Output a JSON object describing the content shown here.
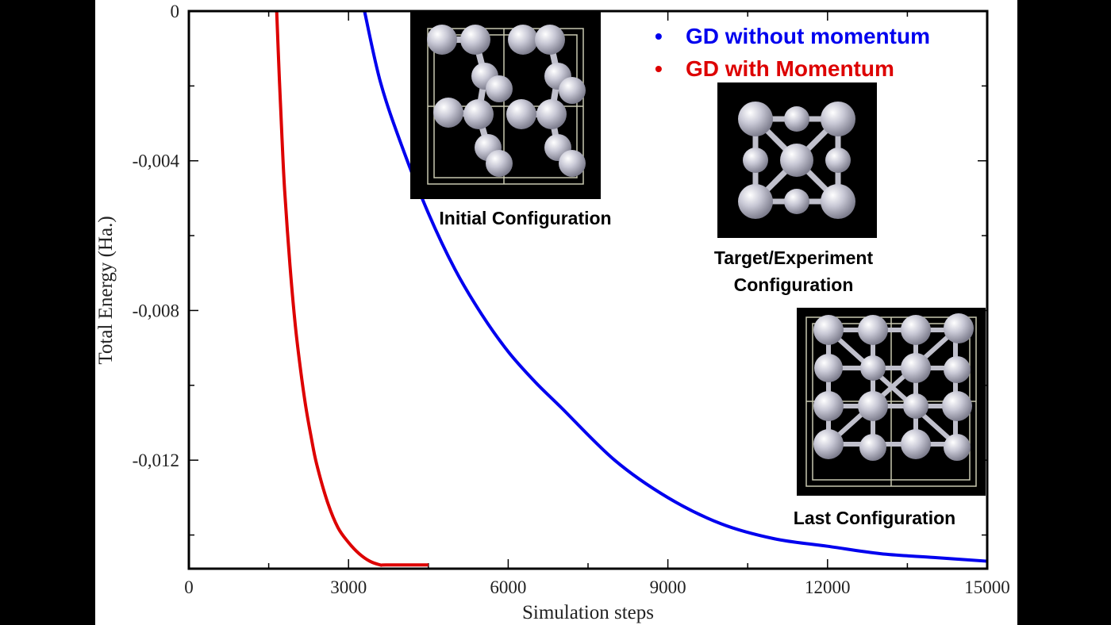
{
  "chart_data": {
    "type": "line",
    "xlabel": "Simulation steps",
    "ylabel": "Total Energy (Ha.)",
    "xlim": [
      0,
      15000
    ],
    "ylim": [
      -0.0149,
      0
    ],
    "xticks": [
      "0",
      "3000",
      "6000",
      "9000",
      "12000",
      "15000"
    ],
    "yticks": [
      "0",
      "-0,004",
      "-0,008",
      "-0,012"
    ],
    "grid": false,
    "legend_position": "top-right",
    "series": [
      {
        "name": "GD without momentum",
        "color": "#0000ee",
        "x": [
          3300,
          3600,
          4000,
          4500,
          5000,
          5500,
          6000,
          6500,
          7000,
          8000,
          9000,
          10000,
          11000,
          12000,
          13000,
          14000,
          15000
        ],
        "y": [
          0,
          -0.0019,
          -0.0036,
          -0.0054,
          -0.0069,
          -0.0081,
          -0.0091,
          -0.0099,
          -0.0106,
          -0.012,
          -0.013,
          -0.0137,
          -0.0141,
          -0.0143,
          -0.0145,
          -0.0146,
          -0.0147
        ]
      },
      {
        "name": "GD with Momentum",
        "color": "#dd0000",
        "x": [
          1650,
          1700,
          1750,
          1800,
          1900,
          2000,
          2100,
          2200,
          2300,
          2400,
          2600,
          2800,
          3000,
          3200,
          3400,
          3600,
          3700,
          4500
        ],
        "y": [
          0,
          -0.0018,
          -0.0034,
          -0.0048,
          -0.0068,
          -0.0084,
          -0.0096,
          -0.0106,
          -0.0114,
          -0.0121,
          -0.0131,
          -0.0138,
          -0.0142,
          -0.0145,
          -0.0147,
          -0.0148,
          -0.0148,
          -0.0148
        ]
      }
    ]
  },
  "legend": {
    "marker": "•",
    "items": [
      {
        "label": "GD without momentum",
        "color": "#0000ee"
      },
      {
        "label": "GD with Momentum",
        "color": "#dd0000"
      }
    ]
  },
  "insets": {
    "initial_caption": "Initial Configuration",
    "target_caption_line1": "Target/Experiment",
    "target_caption_line2": "Configuration",
    "last_caption": "Last Configuration"
  }
}
